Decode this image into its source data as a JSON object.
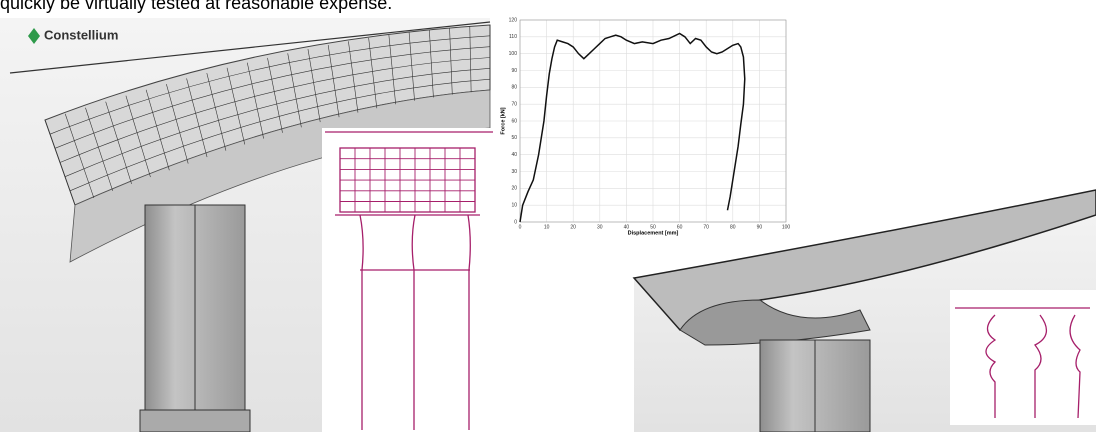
{
  "header": {
    "text": "quickly be virtually tested at reasonable expense."
  },
  "logo": {
    "text": "Constellium"
  },
  "chart_data": {
    "type": "line",
    "xlabel": "Displacement [mm]",
    "ylabel": "Force [kN]",
    "x": [
      0,
      1,
      3,
      5,
      7,
      9,
      10,
      11,
      12,
      13,
      14,
      16,
      18,
      20,
      22,
      24,
      26,
      28,
      30,
      32,
      34,
      36,
      38,
      40,
      43,
      46,
      50,
      53,
      56,
      60,
      62,
      64,
      66,
      68,
      70,
      72,
      74,
      76,
      78,
      80,
      82,
      83,
      84,
      84.5,
      84,
      83,
      82,
      81,
      80,
      79,
      78
    ],
    "series": [
      {
        "color": "#111111",
        "values": [
          0,
          10,
          18,
          25,
          40,
          60,
          75,
          88,
          97,
          104,
          108,
          107,
          106,
          104,
          100,
          97,
          100,
          103,
          106,
          109,
          110,
          111,
          110,
          108,
          106,
          107,
          106,
          108,
          109,
          112,
          110,
          106,
          109,
          108,
          104,
          101,
          100,
          101,
          103,
          105,
          106,
          104,
          98,
          85,
          70,
          58,
          45,
          35,
          25,
          15,
          7
        ]
      }
    ],
    "xlim": [
      0,
      100
    ],
    "ylim": [
      0,
      120
    ],
    "xticks": [
      0,
      10,
      20,
      30,
      40,
      50,
      60,
      70,
      80,
      90,
      100
    ],
    "yticks": [
      0,
      10,
      20,
      30,
      40,
      50,
      60,
      70,
      80,
      90,
      100,
      110,
      120
    ],
    "grid": true
  }
}
